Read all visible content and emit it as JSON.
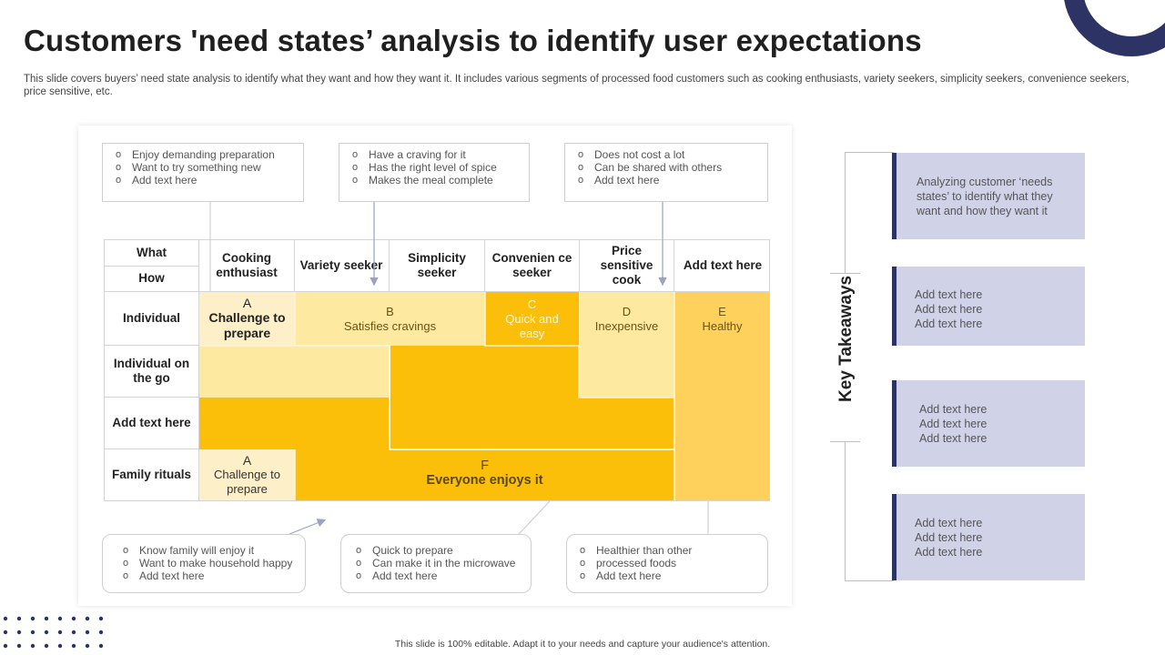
{
  "title": "Customers 'need states’ analysis to identify user expectations",
  "subtitle": "This slide covers buyers’ need state analysis to identify what they want and how they want it. It includes various segments of processed food customers such as cooking enthusiasts, variety seekers, simplicity seekers, convenience seekers, price sensitive, etc.",
  "top_notes": [
    [
      "Enjoy demanding preparation",
      "Want to try something new",
      "Add text here"
    ],
    [
      "Have a craving for it",
      "Has the right level of spice",
      "Makes the meal complete"
    ],
    [
      "Does not cost a lot",
      "Can be shared with others",
      "Add text here"
    ]
  ],
  "bottom_notes": [
    [
      "Know family will enjoy it",
      "Want to make household happy",
      "Add text here"
    ],
    [
      "Quick to prepare",
      "Can make it in the microwave",
      "Add text here"
    ],
    [
      "Healthier than other",
      "processed foods",
      "Add text here"
    ]
  ],
  "matrix": {
    "what_label": "What",
    "how_label": "How",
    "columns": [
      "Cooking enthusiast",
      "Variety seeker",
      "Simplicity seeker",
      "Convenien ce seeker",
      "Price sensitive cook",
      "Add text here"
    ],
    "rows": [
      "Individual",
      "Individual on the go",
      "Add text here",
      "Family rituals"
    ],
    "blocks": {
      "a1_letter": "A",
      "a1_text": "Challenge to prepare",
      "b_letter": "B",
      "b_text": "Satisfies cravings",
      "c_letter": "C",
      "c_text": "Quick and easy",
      "d_letter": "D",
      "d_text": "Inexpensive",
      "e_letter": "E",
      "e_text": "Healthy",
      "a2_letter": "A",
      "a2_text": "Challenge to prepare",
      "f_letter": "F",
      "f_text": "Everyone enjoys it"
    }
  },
  "key_takeaways": {
    "heading": "Key Takeaways",
    "items": [
      [
        "Analyzing customer ‘needs states’ to identify what they want and how they want it"
      ],
      [
        "Add text here",
        "Add text here",
        "Add text here"
      ],
      [
        "Add text here",
        "Add text here",
        "Add text here"
      ],
      [
        "Add text here",
        "Add text here",
        "Add text here"
      ]
    ]
  },
  "colors": {
    "light_yellow": "#fde9a0",
    "pale_yellow": "#fdf0c8",
    "gold": "#fbbf0a",
    "amber": "#fdd15c",
    "navy": "#2e3366",
    "lavender": "#d0d3e8"
  },
  "footer": "This slide is 100% editable. Adapt it to your needs and capture your audience's attention."
}
